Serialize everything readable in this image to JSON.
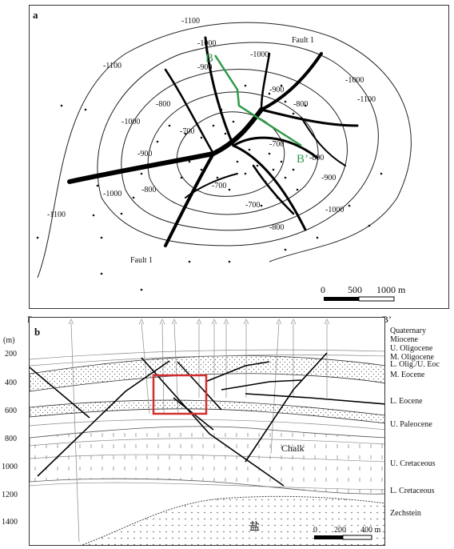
{
  "panel_a": {
    "label": "a",
    "fault_labels": [
      "Fault 1",
      "Fault 1"
    ],
    "section_labels": {
      "start": "B",
      "end": "B’"
    },
    "contours": [
      "-1100",
      "-1100",
      "-1100",
      "-1100",
      "-1000",
      "-1000",
      "-1000",
      "-1000",
      "-1000",
      "-1000",
      "-900",
      "-900",
      "-900",
      "-900",
      "-800",
      "-800",
      "-800",
      "-800",
      "-800",
      "-700",
      "-700",
      "-700",
      "-700"
    ],
    "scale": {
      "zero": "0",
      "mid": "500",
      "end": "1000 m"
    }
  },
  "panel_b": {
    "label": "b",
    "section_labels": {
      "start": "B",
      "end": "B’"
    },
    "depth_unit": "(m)",
    "depth_ticks": [
      "200",
      "400",
      "600",
      "800",
      "1000",
      "1200",
      "1400"
    ],
    "units": [
      "Quaternary",
      "Miocene",
      "U. Oligocene",
      "M. Oligocene",
      "L. Olig./U. Eoc",
      "M. Eocene",
      "L. Eocene",
      "U. Paleocene",
      "U. Cretaceous",
      "L. Cretaceous",
      "Zechstein"
    ],
    "chalk_label": "Chalk",
    "salt_label": "盐",
    "scale": {
      "zero": "0",
      "mid": "200",
      "end": "400 m"
    }
  },
  "colors": {
    "highlight_box": "#d32f2f",
    "section_line": "#2e9a48"
  }
}
